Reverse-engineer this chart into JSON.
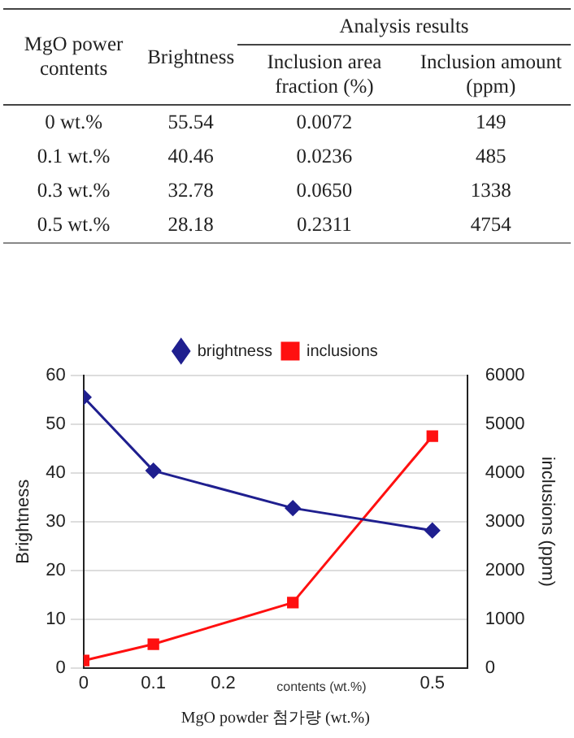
{
  "chart_data": {
    "type": "line",
    "x": [
      0,
      0.1,
      0.3,
      0.5
    ],
    "series": [
      {
        "name": "brightness",
        "color": "#1f1f8f",
        "values": [
          55.54,
          40.46,
          32.78,
          28.18
        ],
        "marker": "diamond"
      },
      {
        "name": "inclusions",
        "color": "#ff1010",
        "values": [
          149,
          485,
          1338,
          4754
        ],
        "marker": "square",
        "axis": "y2"
      }
    ],
    "xlabel": "MgO powder 첨가량 (wt.%)",
    "ylabel": "Brightness",
    "y2label": "inclusions (ppm)",
    "xlim": [
      0,
      0.55
    ],
    "xticks": [
      0,
      0.1,
      0.2,
      0.5
    ],
    "ylim": [
      0,
      60
    ],
    "yticks": [
      0,
      10,
      20,
      30,
      40,
      50,
      60
    ],
    "y2lim": [
      0,
      6000
    ],
    "y2ticks": [
      0,
      1000,
      2000,
      3000,
      4000,
      5000,
      6000
    ],
    "grid": "y",
    "legend": "top",
    "annotations": [
      "contents (wt.%)",
      "MgO power contents",
      "Brightness",
      "Analysis results",
      "Inclusion area fraction (%)",
      "Inclusion amount (ppm)",
      "0 wt.%",
      "0.1 wt.%",
      "0.3 wt.%",
      "0.5 wt.%",
      "55.54",
      "40.46",
      "32.78",
      "28.18",
      "0.0072",
      "0.0236",
      "0.0650",
      "0.2311",
      "149",
      "485",
      "1338",
      "4754"
    ]
  }
}
